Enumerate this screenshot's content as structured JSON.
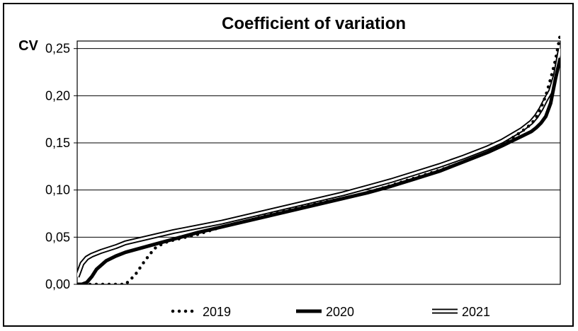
{
  "chart_data": {
    "type": "line",
    "title": "Coefficient of variation",
    "ylabel": "CV",
    "xlabel": "",
    "ylim": [
      0,
      0.25
    ],
    "yticks": [
      "0,00",
      "0,05",
      "0,10",
      "0,15",
      "0,20",
      "0,25"
    ],
    "ytick_values": [
      0,
      0.05,
      0.1,
      0.15,
      0.2,
      0.25
    ],
    "grid": true,
    "legend_position": "bottom",
    "series": [
      {
        "name": "2019",
        "style": "dotted",
        "x": [
          0,
          0.08,
          0.1,
          0.12,
          0.14,
          0.16,
          0.18,
          0.2,
          0.25,
          0.3,
          0.35,
          0.4,
          0.45,
          0.5,
          0.55,
          0.6,
          0.65,
          0.7,
          0.75,
          0.8,
          0.85,
          0.88,
          0.9,
          0.92,
          0.94,
          0.95,
          0.96,
          0.97,
          0.98,
          0.99,
          1.0
        ],
        "values": [
          0.0,
          0.0,
          0.0,
          0.01,
          0.025,
          0.038,
          0.044,
          0.047,
          0.053,
          0.061,
          0.067,
          0.074,
          0.08,
          0.086,
          0.091,
          0.097,
          0.105,
          0.113,
          0.121,
          0.13,
          0.14,
          0.148,
          0.155,
          0.162,
          0.17,
          0.177,
          0.187,
          0.2,
          0.218,
          0.238,
          0.265
        ]
      },
      {
        "name": "2020",
        "style": "thick",
        "x": [
          0,
          0.01,
          0.02,
          0.03,
          0.04,
          0.06,
          0.08,
          0.1,
          0.15,
          0.2,
          0.25,
          0.3,
          0.35,
          0.4,
          0.45,
          0.5,
          0.55,
          0.6,
          0.65,
          0.7,
          0.75,
          0.8,
          0.85,
          0.88,
          0.9,
          0.92,
          0.94,
          0.95,
          0.96,
          0.97,
          0.98,
          0.99,
          1.0
        ],
        "values": [
          0.0,
          0.0,
          0.002,
          0.008,
          0.016,
          0.025,
          0.03,
          0.034,
          0.041,
          0.048,
          0.055,
          0.061,
          0.067,
          0.073,
          0.079,
          0.085,
          0.091,
          0.097,
          0.104,
          0.112,
          0.12,
          0.13,
          0.14,
          0.147,
          0.152,
          0.157,
          0.162,
          0.166,
          0.171,
          0.178,
          0.192,
          0.218,
          0.24
        ]
      },
      {
        "name": "2021",
        "style": "double",
        "x": [
          0,
          0.005,
          0.01,
          0.02,
          0.03,
          0.05,
          0.08,
          0.1,
          0.15,
          0.2,
          0.25,
          0.3,
          0.35,
          0.4,
          0.45,
          0.5,
          0.55,
          0.6,
          0.65,
          0.7,
          0.75,
          0.8,
          0.85,
          0.88,
          0.9,
          0.92,
          0.94,
          0.95,
          0.96,
          0.97,
          0.98,
          0.99,
          1.0
        ],
        "values": [
          0.008,
          0.015,
          0.022,
          0.028,
          0.031,
          0.035,
          0.04,
          0.044,
          0.05,
          0.056,
          0.061,
          0.066,
          0.072,
          0.078,
          0.084,
          0.09,
          0.096,
          0.103,
          0.11,
          0.118,
          0.126,
          0.135,
          0.145,
          0.152,
          0.158,
          0.164,
          0.172,
          0.178,
          0.186,
          0.196,
          0.205,
          0.222,
          0.25
        ]
      }
    ]
  }
}
